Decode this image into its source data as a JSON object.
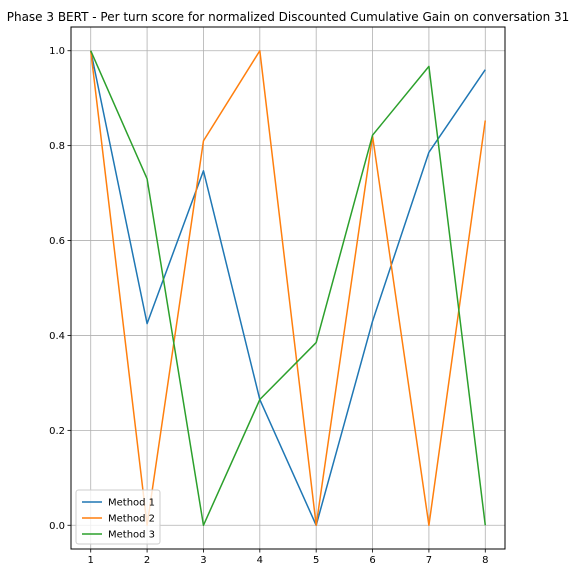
{
  "chart_data": {
    "type": "line",
    "title": "Phase 3 BERT - Per turn score for normalized Discounted Cumulative Gain on conversation 31",
    "xlabel": "",
    "ylabel": "",
    "x": [
      1,
      2,
      3,
      4,
      5,
      6,
      7,
      8
    ],
    "xlim": [
      0.65,
      8.35
    ],
    "ylim": [
      -0.05,
      1.05
    ],
    "xticks": [
      1,
      2,
      3,
      4,
      5,
      6,
      7,
      8
    ],
    "yticks": [
      0.0,
      0.2,
      0.4,
      0.6,
      0.8,
      1.0
    ],
    "ytick_labels": [
      "0.0",
      "0.2",
      "0.4",
      "0.6",
      "0.8",
      "1.0"
    ],
    "grid": true,
    "legend_position": "lower-left",
    "series": [
      {
        "name": "Method 1",
        "color": "#1f77b4",
        "values": [
          1.0,
          0.425,
          0.747,
          0.265,
          0.0,
          0.43,
          0.786,
          0.96
        ]
      },
      {
        "name": "Method 2",
        "color": "#ff7f0e",
        "values": [
          1.0,
          0.0,
          0.81,
          1.0,
          0.0,
          0.82,
          0.0,
          0.853
        ]
      },
      {
        "name": "Method 3",
        "color": "#2ca02c",
        "values": [
          1.0,
          0.73,
          0.0,
          0.265,
          0.385,
          0.822,
          0.967,
          0.0
        ]
      }
    ]
  }
}
